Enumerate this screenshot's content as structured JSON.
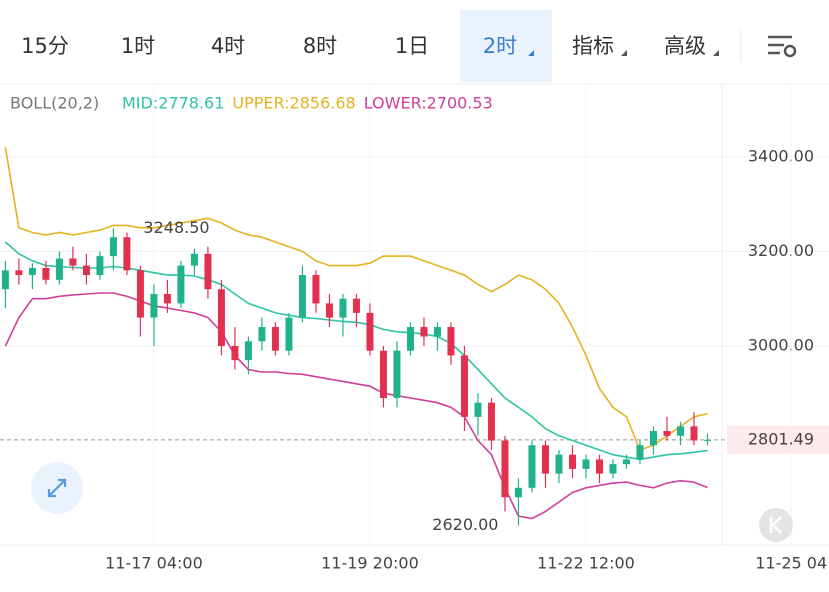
{
  "tabs": {
    "items": [
      "15分",
      "1时",
      "4时",
      "8时",
      "1日",
      "2时",
      "指标",
      "高级"
    ],
    "active": 5
  },
  "chart_data": {
    "type": "candlestick",
    "indicator": "BOLL(20,2)",
    "xlim": [
      -0.4,
      61
    ],
    "ylim": [
      2579,
      3552
    ],
    "yticks": [
      {
        "value": 3400,
        "label": "3400.00"
      },
      {
        "value": 3200,
        "label": "3200.00"
      },
      {
        "value": 3000,
        "label": "3000.00"
      }
    ],
    "xticks": [
      {
        "value": 11,
        "label": "11-17 04:00"
      },
      {
        "value": 27,
        "label": "11-19 20:00"
      },
      {
        "value": 43,
        "label": "11-22 12:00"
      },
      {
        "value": 58.2,
        "label": "11-25 04"
      }
    ],
    "grid": true,
    "up_color": "#20b28a",
    "down_color": "#e2304f",
    "open": [
      3120,
      3160,
      3150,
      3165,
      3140,
      3185,
      3170,
      3150,
      3190,
      3230,
      3160,
      3060,
      3110,
      3090,
      3170,
      3195,
      3120,
      3000,
      2970,
      3010,
      3040,
      2990,
      3060,
      3150,
      3090,
      3060,
      3100,
      3070,
      2990,
      2890,
      2990,
      3040,
      3020,
      3040,
      2980,
      2850,
      2880,
      2800,
      2680,
      2700,
      2790,
      2730,
      2770,
      2740,
      2760,
      2730,
      2750,
      2760,
      2790,
      2820,
      2810,
      2830,
      2800
    ],
    "high": [
      3180,
      3185,
      3175,
      3180,
      3200,
      3210,
      3195,
      3200,
      3248.5,
      3240,
      3170,
      3130,
      3140,
      3180,
      3205,
      3210,
      3140,
      3040,
      3020,
      3060,
      3050,
      3070,
      3170,
      3160,
      3110,
      3110,
      3110,
      3090,
      3000,
      3010,
      3050,
      3060,
      3050,
      3050,
      3000,
      2900,
      2890,
      2810,
      2720,
      2800,
      2800,
      2780,
      2790,
      2770,
      2770,
      2760,
      2770,
      2800,
      2830,
      2850,
      2840,
      2860,
      2815
    ],
    "low": [
      3080,
      3130,
      3120,
      3130,
      3130,
      3160,
      3130,
      3140,
      3160,
      3150,
      3020,
      3000,
      3070,
      3080,
      3150,
      3100,
      2980,
      2950,
      2940,
      2990,
      2980,
      2980,
      3050,
      3070,
      3040,
      3020,
      3040,
      2980,
      2870,
      2870,
      2980,
      3000,
      2990,
      2960,
      2820,
      2810,
      2780,
      2650,
      2620,
      2690,
      2700,
      2710,
      2720,
      2720,
      2710,
      2720,
      2740,
      2750,
      2770,
      2800,
      2790,
      2790,
      2790
    ],
    "close": [
      3160,
      3150,
      3165,
      3140,
      3185,
      3170,
      3150,
      3190,
      3230,
      3160,
      3060,
      3110,
      3090,
      3170,
      3195,
      3120,
      3000,
      2970,
      3010,
      3040,
      2990,
      3060,
      3150,
      3090,
      3060,
      3100,
      3070,
      2990,
      2890,
      2990,
      3040,
      3020,
      3040,
      2980,
      2850,
      2880,
      2800,
      2680,
      2700,
      2790,
      2730,
      2770,
      2740,
      2760,
      2730,
      2750,
      2760,
      2790,
      2820,
      2810,
      2830,
      2800,
      2801.49
    ],
    "series": [
      {
        "name": "MID",
        "legend": "MID:2778.61",
        "color": "#2fc4a2",
        "values": [
          3220,
          3195,
          3180,
          3170,
          3168,
          3166,
          3165,
          3165,
          3168,
          3165,
          3160,
          3155,
          3150,
          3150,
          3148,
          3140,
          3130,
          3110,
          3090,
          3080,
          3070,
          3065,
          3060,
          3058,
          3055,
          3052,
          3050,
          3045,
          3035,
          3030,
          3028,
          3025,
          3020,
          3005,
          2980,
          2950,
          2920,
          2890,
          2870,
          2850,
          2825,
          2810,
          2800,
          2790,
          2780,
          2770,
          2765,
          2760,
          2765,
          2770,
          2772,
          2775,
          2778.61
        ]
      },
      {
        "name": "UPPER",
        "legend": "UPPER:2856.68",
        "color": "#e6b220",
        "values": [
          3420,
          3250,
          3240,
          3235,
          3240,
          3235,
          3240,
          3245,
          3255,
          3255,
          3250,
          3250,
          3255,
          3260,
          3265,
          3270,
          3260,
          3245,
          3235,
          3230,
          3220,
          3210,
          3200,
          3180,
          3170,
          3170,
          3170,
          3175,
          3190,
          3190,
          3190,
          3180,
          3170,
          3160,
          3150,
          3130,
          3115,
          3130,
          3150,
          3140,
          3120,
          3090,
          3040,
          2980,
          2910,
          2870,
          2850,
          2780,
          2790,
          2810,
          2830,
          2850,
          2856.68
        ]
      },
      {
        "name": "LOWER",
        "legend": "LOWER:2700.53",
        "color": "#d03f98",
        "values": [
          3000,
          3060,
          3100,
          3100,
          3105,
          3108,
          3110,
          3112,
          3112,
          3105,
          3095,
          3085,
          3080,
          3075,
          3070,
          3060,
          3030,
          2980,
          2950,
          2945,
          2945,
          2942,
          2940,
          2935,
          2930,
          2925,
          2920,
          2915,
          2900,
          2895,
          2890,
          2885,
          2880,
          2870,
          2850,
          2800,
          2770,
          2700,
          2640,
          2635,
          2650,
          2670,
          2690,
          2700,
          2705,
          2710,
          2712,
          2705,
          2700,
          2710,
          2715,
          2712,
          2700.53
        ]
      }
    ],
    "annotations": [
      {
        "value": 3248.5,
        "label": "3248.50",
        "index": 8
      },
      {
        "value": 2620,
        "label": "2620.00",
        "index": 38
      }
    ],
    "last_price": 2801.49
  }
}
